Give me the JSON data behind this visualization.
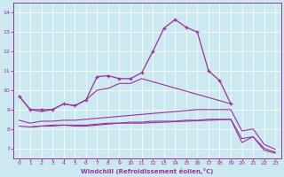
{
  "xlabel": "Windchill (Refroidissement éolien,°C)",
  "background_color": "#cce8f0",
  "line_color": "#993399",
  "xlim": [
    -0.5,
    23.5
  ],
  "ylim": [
    6.5,
    14.5
  ],
  "xticks": [
    0,
    1,
    2,
    3,
    4,
    5,
    6,
    7,
    8,
    9,
    10,
    11,
    12,
    13,
    14,
    15,
    16,
    17,
    18,
    19,
    20,
    21,
    22,
    23
  ],
  "yticks": [
    7,
    8,
    9,
    10,
    11,
    12,
    13,
    14
  ],
  "line1_x": [
    0,
    1,
    2,
    3,
    4,
    5,
    6,
    7,
    8,
    9,
    10,
    11,
    12,
    13,
    14,
    15,
    16,
    17,
    18,
    19
  ],
  "line1_y": [
    9.7,
    9.0,
    9.0,
    9.0,
    9.3,
    9.2,
    9.5,
    10.7,
    10.75,
    10.6,
    10.6,
    10.9,
    12.0,
    13.2,
    13.65,
    13.25,
    13.0,
    11.0,
    10.5,
    9.3
  ],
  "line2_x": [
    0,
    1,
    2,
    3,
    4,
    5,
    6,
    7,
    8,
    9,
    10,
    11,
    19
  ],
  "line2_y": [
    9.7,
    9.0,
    8.9,
    9.0,
    9.3,
    9.2,
    9.5,
    10.0,
    10.1,
    10.35,
    10.35,
    10.6,
    9.3
  ],
  "line3_x": [
    0,
    1,
    2,
    3,
    4,
    5,
    6,
    7,
    8,
    9,
    10,
    11,
    12,
    13,
    14,
    15,
    16,
    17,
    18,
    19,
    20,
    21,
    22,
    23
  ],
  "line3_y": [
    8.45,
    8.3,
    8.4,
    8.4,
    8.45,
    8.45,
    8.5,
    8.55,
    8.6,
    8.65,
    8.7,
    8.75,
    8.8,
    8.85,
    8.9,
    8.95,
    9.0,
    9.0,
    9.0,
    9.0,
    7.9,
    8.0,
    7.2,
    6.95
  ],
  "line4_x": [
    0,
    1,
    2,
    3,
    4,
    5,
    6,
    7,
    8,
    9,
    10,
    11,
    12,
    13,
    14,
    15,
    16,
    17,
    18,
    19,
    20,
    21,
    22,
    23
  ],
  "line4_y": [
    8.15,
    8.1,
    8.15,
    8.2,
    8.2,
    8.2,
    8.2,
    8.25,
    8.3,
    8.3,
    8.35,
    8.35,
    8.4,
    8.4,
    8.4,
    8.45,
    8.45,
    8.5,
    8.5,
    8.5,
    7.5,
    7.6,
    7.0,
    6.8
  ],
  "line5_x": [
    1,
    2,
    3,
    4,
    5,
    6,
    7,
    8,
    9,
    10,
    11,
    19,
    20,
    21,
    22,
    23
  ],
  "line5_y": [
    8.1,
    8.15,
    8.15,
    8.2,
    8.15,
    8.15,
    8.2,
    8.25,
    8.3,
    8.3,
    8.3,
    8.5,
    7.3,
    7.6,
    6.9,
    6.75
  ]
}
